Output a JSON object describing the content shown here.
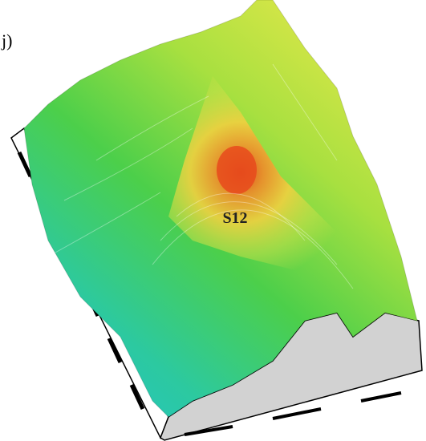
{
  "panel_label": "j)",
  "annotation": "S12"
}
